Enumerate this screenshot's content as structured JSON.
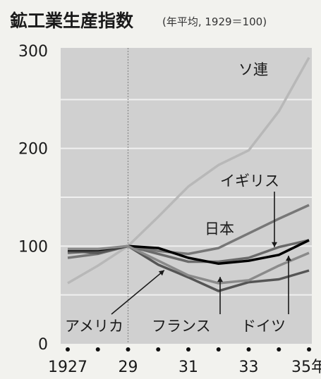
{
  "chart_data": {
    "type": "line",
    "title": "鉱工業生産指数",
    "subtitle": "(年平均, 1929＝100)",
    "x": [
      1927,
      1928,
      1929,
      1930,
      1931,
      1932,
      1933,
      1934,
      1935
    ],
    "x_tick_values": [
      1927,
      1929,
      1931,
      1933,
      1935
    ],
    "x_tick_labels": [
      "1927",
      "29",
      "31",
      "33",
      "35年"
    ],
    "y_ticks": [
      0,
      100,
      200,
      300
    ],
    "ylim": [
      0,
      300
    ],
    "xlim": [
      1927,
      1935
    ],
    "grid": true,
    "reference_line_x": 1929,
    "series": [
      {
        "name": "ソ連",
        "color": "#b8b8b8",
        "values": [
          62,
          80,
          100,
          130,
          161,
          183,
          198,
          238,
          293
        ]
      },
      {
        "name": "イギリス",
        "color": "#6a6a6a",
        "values": [
          93,
          95,
          100,
          92,
          84,
          84,
          88,
          99,
          106
        ]
      },
      {
        "name": "日本",
        "color": "#777777",
        "values": [
          88,
          92,
          100,
          95,
          92,
          98,
          113,
          128,
          142
        ]
      },
      {
        "name": "アメリカ",
        "color": "#555555",
        "values": [
          95,
          93,
          100,
          81,
          68,
          54,
          63,
          66,
          75
        ]
      },
      {
        "name": "フランス",
        "color": "#000000",
        "values": [
          96,
          96,
          100,
          98,
          88,
          82,
          85,
          91,
          106
        ]
      },
      {
        "name": "ドイツ",
        "color": "#8a8a8a",
        "values": [
          97,
          97,
          100,
          85,
          70,
          62,
          65,
          80,
          93
        ]
      }
    ]
  }
}
